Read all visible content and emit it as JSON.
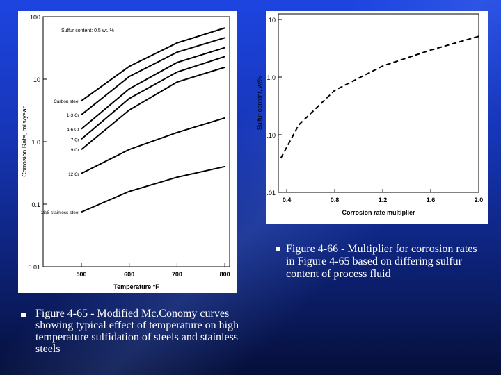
{
  "chart_data": [
    {
      "type": "line",
      "annotation": "Sulfur content: 0.5 wt. %",
      "x_label": "Temperature °F",
      "y_label": "Corrosion Rate, mils/year",
      "log_y": true,
      "xlim": [
        420,
        810
      ],
      "xticks": [
        500,
        600,
        700,
        800
      ],
      "ylim": [
        0.01,
        100
      ],
      "yticks": [
        100,
        10,
        {
          "value": 1,
          "label": "1.0"
        },
        0.1,
        0.01
      ],
      "x": [
        500,
        600,
        700,
        800
      ],
      "series": [
        {
          "name": "Carbon steel",
          "color": "#000000",
          "values": [
            4.5,
            16,
            38,
            66
          ]
        },
        {
          "name": "1-3 Cr",
          "color": "#000000",
          "values": [
            2.7,
            11,
            27,
            46
          ]
        },
        {
          "name": "4-6 Cr",
          "color": "#000000",
          "values": [
            1.6,
            7,
            18.5,
            32
          ]
        },
        {
          "name": "7 Cr",
          "color": "#000000",
          "values": [
            1.1,
            4.9,
            13,
            23
          ]
        },
        {
          "name": "9 Cr",
          "color": "#000000",
          "values": [
            0.75,
            3.2,
            9,
            15.5
          ]
        },
        {
          "name": "12 Cr",
          "color": "#000000",
          "values": [
            0.31,
            0.75,
            1.4,
            2.4
          ]
        },
        {
          "name": "18/8 stainless steel",
          "color": "#000000",
          "values": [
            0.075,
            0.16,
            0.27,
            0.4
          ]
        }
      ]
    },
    {
      "type": "line",
      "x_label": "Corrosion rate multiplier",
      "y_label": "Sulfur content, wt%",
      "log_y": true,
      "dashed": true,
      "xlim": [
        0.33,
        2.0
      ],
      "xticks": [
        0.4,
        0.8,
        1.2,
        1.6,
        {
          "value": 2,
          "label": "2.0"
        }
      ],
      "ylim": [
        0.01,
        12.5
      ],
      "yticks": [
        10,
        {
          "value": 1,
          "label": "1.0"
        },
        {
          "value": 0.1,
          "label": ".10"
        },
        {
          "value": 0.01,
          "label": ".01"
        }
      ],
      "x": [
        0.35,
        0.5,
        0.8,
        1.2,
        1.6,
        2.0
      ],
      "series": [
        {
          "color": "#000000",
          "values": [
            0.039,
            0.148,
            0.59,
            1.56,
            2.95,
            5.1
          ]
        }
      ]
    }
  ],
  "captions": [
    "Figure 4-66 - Multiplier for corrosion rates in Figure 4-65 based on differing sulfur content of process fluid",
    "Figure 4-65 - Modified Mc.Conomy curves showing typical effect of temperature on high temperature sulfidation of steels and stainless steels"
  ]
}
